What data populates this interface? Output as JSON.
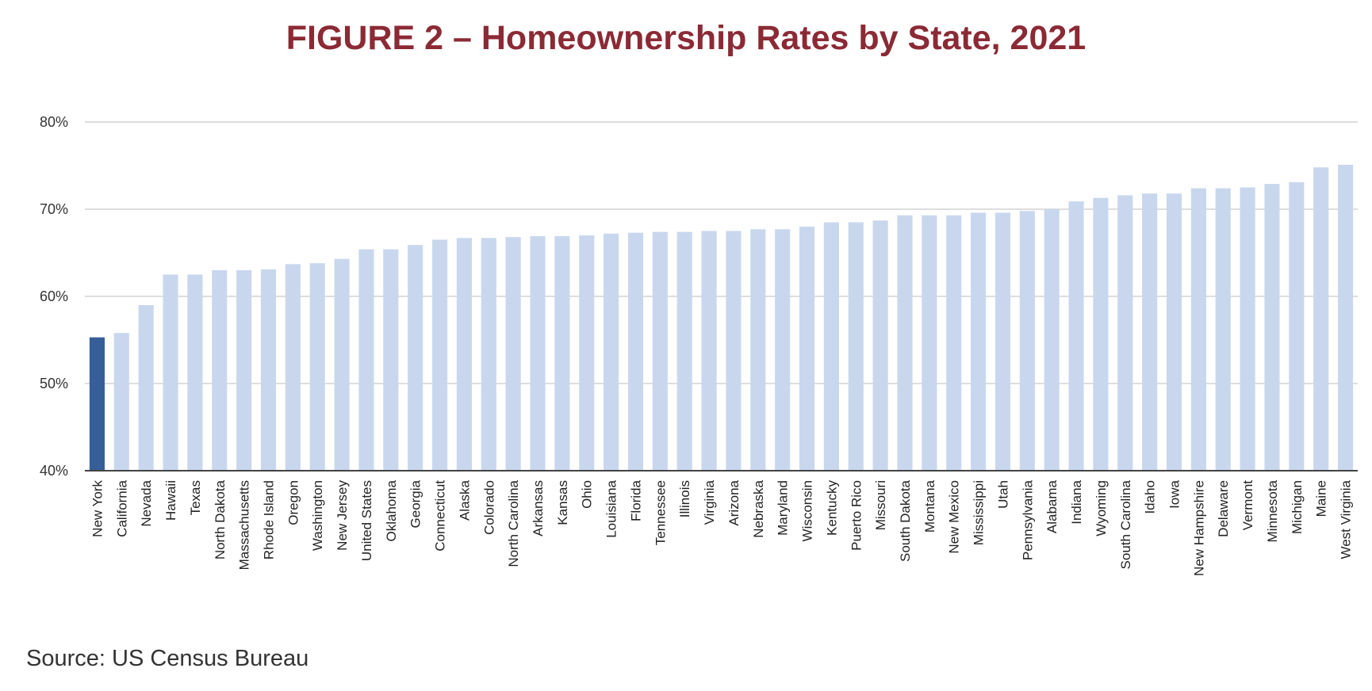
{
  "chart_data": {
    "type": "bar",
    "title": "FIGURE 2 – Homeownership Rates by State, 2021",
    "xlabel": "",
    "ylabel": "",
    "ylim": [
      40,
      80
    ],
    "yticks": [
      "40%",
      "50%",
      "60%",
      "70%",
      "80%"
    ],
    "grid": true,
    "highlight": "New York",
    "colors": {
      "highlight": "#365F99",
      "default": "#C9D7EE",
      "title": "#8B2A35"
    },
    "categories": [
      "New York",
      "California",
      "Nevada",
      "Hawaii",
      "Texas",
      "North Dakota",
      "Massachusetts",
      "Rhode Island",
      "Oregon",
      "Washington",
      "New Jersey",
      "United States",
      "Oklahoma",
      "Georgia",
      "Connecticut",
      "Alaska",
      "Colorado",
      "North Carolina",
      "Arkansas",
      "Kansas",
      "Ohio",
      "Louisiana",
      "Florida",
      "Tennessee",
      "Illinois",
      "Virginia",
      "Arizona",
      "Nebraska",
      "Maryland",
      "Wisconsin",
      "Kentucky",
      "Puerto Rico",
      "Missouri",
      "South Dakota",
      "Montana",
      "New Mexico",
      "Mississippi",
      "Utah",
      "Pennsylvania",
      "Alabama",
      "Indiana",
      "Wyoming",
      "South Carolina",
      "Idaho",
      "Iowa",
      "New Hampshire",
      "Delaware",
      "Vermont",
      "Minnesota",
      "Michigan",
      "Maine",
      "West Virginia"
    ],
    "values": [
      55.3,
      55.8,
      59.0,
      62.5,
      62.5,
      63.0,
      63.0,
      63.1,
      63.7,
      63.8,
      64.3,
      65.4,
      65.4,
      65.9,
      66.5,
      66.7,
      66.7,
      66.8,
      66.9,
      66.9,
      67.0,
      67.2,
      67.3,
      67.4,
      67.4,
      67.5,
      67.5,
      67.7,
      67.7,
      68.0,
      68.5,
      68.5,
      68.7,
      69.3,
      69.3,
      69.3,
      69.6,
      69.6,
      69.8,
      70.0,
      70.9,
      71.3,
      71.6,
      71.8,
      71.8,
      72.4,
      72.4,
      72.5,
      72.9,
      73.1,
      74.8,
      75.1
    ]
  },
  "source": "Source: US Census Bureau"
}
